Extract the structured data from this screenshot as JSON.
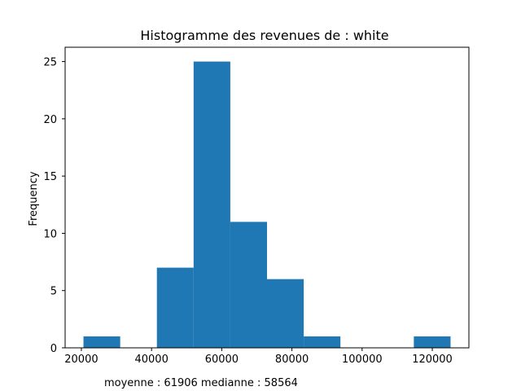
{
  "chart_data": {
    "type": "bar",
    "title": "Histogramme des revenues de : white",
    "xlabel": "",
    "ylabel": "Frequency",
    "bins": [
      {
        "x0": 20600,
        "x1": 31060,
        "count": 1
      },
      {
        "x0": 31060,
        "x1": 41520,
        "count": 0
      },
      {
        "x0": 41520,
        "x1": 51980,
        "count": 7
      },
      {
        "x0": 51980,
        "x1": 62440,
        "count": 25
      },
      {
        "x0": 62440,
        "x1": 72900,
        "count": 11
      },
      {
        "x0": 72900,
        "x1": 83360,
        "count": 6
      },
      {
        "x0": 83360,
        "x1": 93820,
        "count": 1
      },
      {
        "x0": 93820,
        "x1": 104280,
        "count": 0
      },
      {
        "x0": 104280,
        "x1": 114740,
        "count": 0
      },
      {
        "x0": 114740,
        "x1": 125200,
        "count": 1
      }
    ],
    "xlim": [
      15370,
      130430
    ],
    "ylim": [
      0,
      26.25
    ],
    "xticks": [
      20000,
      40000,
      60000,
      80000,
      100000,
      120000
    ],
    "xtick_labels": [
      "20000",
      "40000",
      "60000",
      "80000",
      "100000",
      "120000"
    ],
    "yticks": [
      0,
      5,
      10,
      15,
      20,
      25
    ],
    "ytick_labels": [
      "0",
      "5",
      "10",
      "15",
      "20",
      "25"
    ],
    "bar_color": "#1f77b4",
    "grid": false,
    "legend": "none"
  },
  "footnote": "moyenne : 61906  medianne : 58564"
}
